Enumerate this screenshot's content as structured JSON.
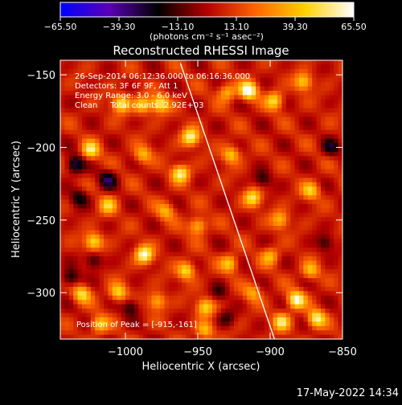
{
  "chart_data": {
    "type": "heatmap",
    "title": "Reconstructed RHESSI Image",
    "xlabel": "Heliocentric X (arcsec)",
    "ylabel": "Heliocentric Y (arcsec)",
    "xlim": [
      -1045,
      -850
    ],
    "ylim": [
      -332,
      -140
    ],
    "x_ticks": [
      -1000,
      -950,
      -900,
      -850
    ],
    "x_tick_labels": [
      "−1000",
      "−950",
      "−900",
      "−850"
    ],
    "y_ticks": [
      -150,
      -200,
      -250,
      -300
    ],
    "y_tick_labels": [
      "−150",
      "−200",
      "−250",
      "−300"
    ],
    "colorbar": {
      "range": [
        -65.5,
        65.5
      ],
      "ticks": [
        -65.5,
        -39.3,
        -13.1,
        13.1,
        39.3,
        65.5
      ],
      "tick_labels": [
        "−65.50",
        "−39.30",
        "−13.10",
        "13.10",
        "39.30",
        "65.50"
      ],
      "units": "(photons cm⁻² s⁻¹ asec⁻²)",
      "colors": [
        "#0000ff",
        "#5a00b4",
        "#000000",
        "#b40000",
        "#ff6600",
        "#ffd000",
        "#ffffff"
      ]
    },
    "limb_line": {
      "points": [
        [
          -962,
          -142
        ],
        [
          -897,
          -332
        ]
      ]
    },
    "peak_marker": {
      "position": [
        -915,
        -161
      ]
    },
    "annotations": [
      "26-Sep-2014 06:12:36.000 to 06:16:36.000",
      "Detectors: 3F 6F 9F, Att 1",
      "Energy Range: 3.0 - 6.0 keV",
      "Clean     Total counts: 2.92E+03",
      "Position of Peak = [-915,-161]"
    ],
    "hotspots": [
      {
        "x": -1003,
        "y": -170,
        "v": 48
      },
      {
        "x": -988,
        "y": -171,
        "v": 40
      },
      {
        "x": -976,
        "y": -170,
        "v": 50
      },
      {
        "x": -955,
        "y": -193,
        "v": 52
      },
      {
        "x": -1024,
        "y": -202,
        "v": 46
      },
      {
        "x": -988,
        "y": -205,
        "v": 34
      },
      {
        "x": -962,
        "y": -218,
        "v": 50
      },
      {
        "x": -927,
        "y": -205,
        "v": 38
      },
      {
        "x": -915,
        "y": -161,
        "v": 65
      },
      {
        "x": -930,
        "y": -162,
        "v": 35
      },
      {
        "x": -897,
        "y": -168,
        "v": 42
      },
      {
        "x": -877,
        "y": -155,
        "v": 40
      },
      {
        "x": -1012,
        "y": -240,
        "v": 36
      },
      {
        "x": -972,
        "y": -244,
        "v": 30
      },
      {
        "x": -950,
        "y": -254,
        "v": 40
      },
      {
        "x": -912,
        "y": -235,
        "v": 44
      },
      {
        "x": -893,
        "y": -250,
        "v": 34
      },
      {
        "x": -872,
        "y": -230,
        "v": 38
      },
      {
        "x": -1022,
        "y": -265,
        "v": 46
      },
      {
        "x": -987,
        "y": -274,
        "v": 58
      },
      {
        "x": -958,
        "y": -285,
        "v": 44
      },
      {
        "x": -928,
        "y": -280,
        "v": 38
      },
      {
        "x": -900,
        "y": -275,
        "v": 32
      },
      {
        "x": -872,
        "y": -285,
        "v": 34
      },
      {
        "x": -1030,
        "y": -301,
        "v": 42
      },
      {
        "x": -1005,
        "y": -300,
        "v": 42
      },
      {
        "x": -978,
        "y": -306,
        "v": 36
      },
      {
        "x": -945,
        "y": -310,
        "v": 40
      },
      {
        "x": -912,
        "y": -300,
        "v": 30
      },
      {
        "x": -882,
        "y": -305,
        "v": 56
      },
      {
        "x": -868,
        "y": -318,
        "v": 50
      },
      {
        "x": -892,
        "y": -320,
        "v": 44
      },
      {
        "x": -1018,
        "y": -322,
        "v": 38
      },
      {
        "x": -945,
        "y": -326,
        "v": 36
      }
    ],
    "coldspots": [
      {
        "x": -1035,
        "y": -212,
        "v": -40
      },
      {
        "x": -1012,
        "y": -222,
        "v": -34
      },
      {
        "x": -1032,
        "y": -235,
        "v": -30
      },
      {
        "x": -1022,
        "y": -278,
        "v": -28
      },
      {
        "x": -1038,
        "y": -290,
        "v": -32
      },
      {
        "x": -996,
        "y": -310,
        "v": -26
      },
      {
        "x": -930,
        "y": -318,
        "v": -20
      },
      {
        "x": -905,
        "y": -222,
        "v": -24
      },
      {
        "x": -858,
        "y": -200,
        "v": -26
      },
      {
        "x": -862,
        "y": -266,
        "v": -24
      },
      {
        "x": -935,
        "y": -300,
        "v": -18
      }
    ]
  },
  "footer": {
    "timestamp": "17-May-2022 14:34"
  }
}
